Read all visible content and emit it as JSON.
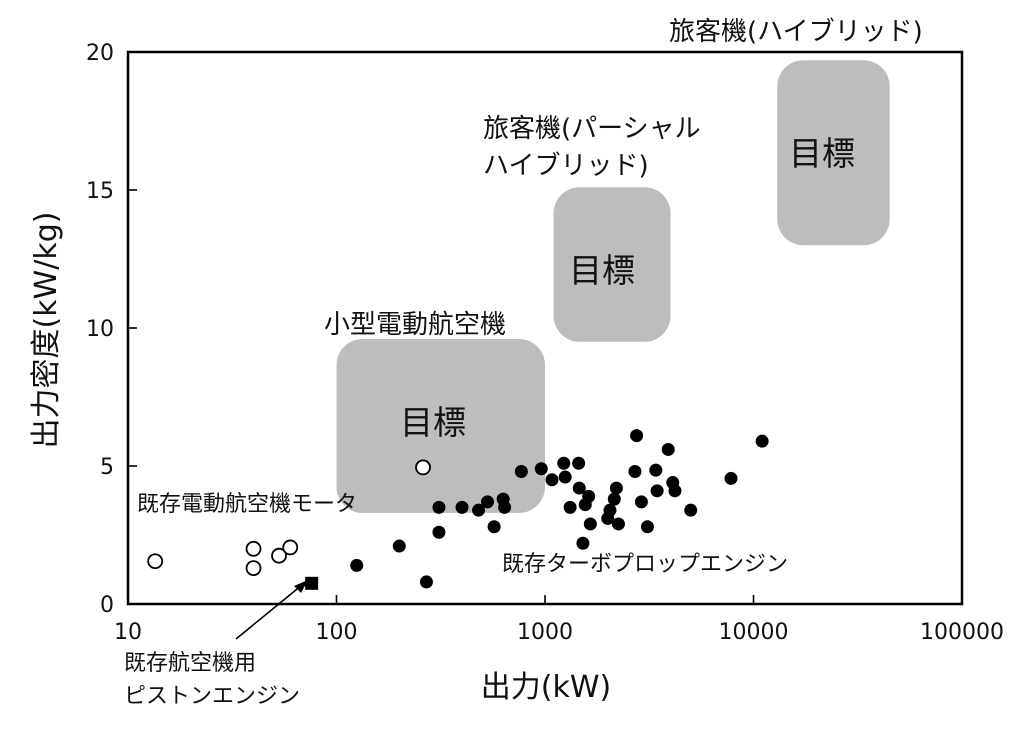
{
  "chart_data": {
    "type": "scatter",
    "xlabel": "出力(kW)",
    "ylabel": "出力密度(kW/kg)",
    "x_scale": "log",
    "xlim": [
      10,
      100000
    ],
    "ylim": [
      0,
      20
    ],
    "x_tick_labels": [
      "10",
      "100",
      "1000",
      "10000",
      "100000"
    ],
    "y_tick_labels": [
      "0",
      "5",
      "10",
      "15",
      "20"
    ],
    "grid": false,
    "series": [
      {
        "name": "既存電動航空機モータ",
        "marker": "open-circle",
        "points": [
          [
            13.5,
            1.55
          ],
          [
            40,
            2.0
          ],
          [
            40,
            1.3
          ],
          [
            53,
            1.75
          ],
          [
            60,
            2.05
          ],
          [
            260,
            4.95
          ]
        ]
      },
      {
        "name": "既存ターボプロップエンジン",
        "marker": "filled-circle",
        "points": [
          [
            125,
            1.4
          ],
          [
            200,
            2.1
          ],
          [
            270,
            0.8
          ],
          [
            310,
            2.6
          ],
          [
            310,
            3.5
          ],
          [
            400,
            3.5
          ],
          [
            480,
            3.4
          ],
          [
            530,
            3.7
          ],
          [
            570,
            2.8
          ],
          [
            630,
            3.8
          ],
          [
            640,
            3.5
          ],
          [
            770,
            4.8
          ],
          [
            960,
            4.9
          ],
          [
            1080,
            4.5
          ],
          [
            1230,
            5.1
          ],
          [
            1250,
            4.6
          ],
          [
            1320,
            3.5
          ],
          [
            1450,
            5.1
          ],
          [
            1460,
            4.2
          ],
          [
            1520,
            2.2
          ],
          [
            1560,
            3.6
          ],
          [
            1620,
            3.9
          ],
          [
            1650,
            2.9
          ],
          [
            2000,
            3.1
          ],
          [
            2050,
            3.4
          ],
          [
            2150,
            3.8
          ],
          [
            2200,
            4.2
          ],
          [
            2250,
            2.9
          ],
          [
            2700,
            4.8
          ],
          [
            2750,
            6.1
          ],
          [
            2900,
            3.7
          ],
          [
            3100,
            2.8
          ],
          [
            3400,
            4.85
          ],
          [
            3450,
            4.1
          ],
          [
            3900,
            5.6
          ],
          [
            4100,
            4.4
          ],
          [
            4200,
            4.1
          ],
          [
            5000,
            3.4
          ],
          [
            7800,
            4.55
          ],
          [
            11000,
            5.9
          ]
        ]
      },
      {
        "name": "既存航空機用ピストンエンジン",
        "marker": "filled-square",
        "points": [
          [
            76,
            0.75
          ]
        ]
      }
    ],
    "target_regions": [
      {
        "name": "小型電動航空機",
        "label": "目標",
        "x_range": [
          100,
          1000
        ],
        "y_range": [
          3.3,
          9.6
        ],
        "color": "#bdbdbd"
      },
      {
        "name": "旅客機(パーシャルハイブリッド)",
        "label": "目標",
        "x_range": [
          1100,
          4000
        ],
        "y_range": [
          9.5,
          15.1
        ],
        "color": "#bdbdbd"
      },
      {
        "name": "旅客機(ハイブリッド)",
        "label": "目標",
        "x_range": [
          13000,
          45000
        ],
        "y_range": [
          13.0,
          19.7
        ],
        "color": "#bdbdbd"
      }
    ],
    "annotations": [
      {
        "text": "小型電動航空機"
      },
      {
        "text": "旅客機(パーシャル"
      },
      {
        "text": "ハイブリッド)"
      },
      {
        "text": "旅客機(ハイブリッド)"
      },
      {
        "text": "既存電動航空機モータ"
      },
      {
        "text": "既存ターボプロップエンジン"
      },
      {
        "text": "既存航空機用"
      },
      {
        "text": "ピストンエンジン"
      }
    ]
  }
}
